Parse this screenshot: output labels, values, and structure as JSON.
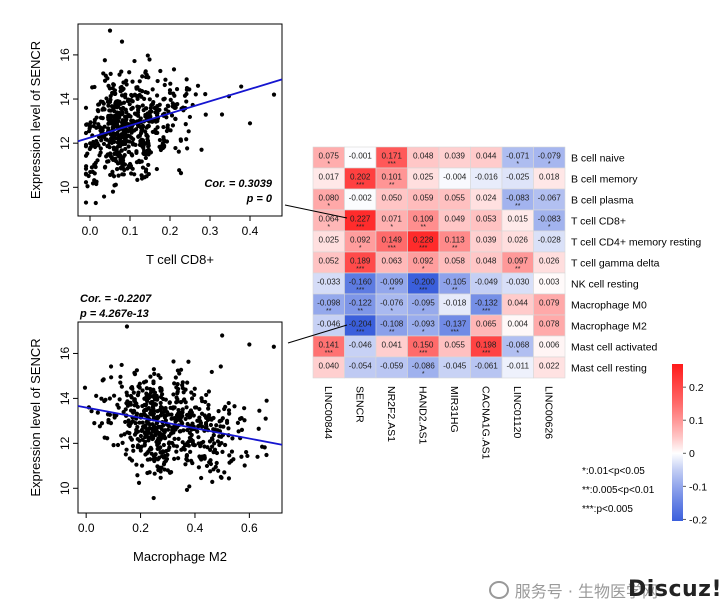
{
  "chart_data": [
    {
      "type": "scatter",
      "id": "scatter_cd8",
      "xlabel": "T cell CD8+",
      "ylabel": "Expression level of SENCR",
      "xlim": [
        -0.03,
        0.48
      ],
      "ylim": [
        8.7,
        17.4
      ],
      "x_ticks": [
        0.0,
        0.1,
        0.2,
        0.3,
        0.4
      ],
      "x_tick_labels": [
        "0.0",
        "0.1",
        "0.2",
        "0.3",
        "0.4"
      ],
      "y_ticks": [
        10,
        12,
        14,
        16
      ],
      "y_tick_labels": [
        "10",
        "12",
        "14",
        "16"
      ],
      "regression": {
        "intercept": 12.25,
        "slope": 5.5
      },
      "stats": {
        "cor": "Cor. = 0.3039",
        "p": "p = 0"
      },
      "n_points": 620,
      "cloud": {
        "x_mean": 0.09,
        "x_sd": 0.06,
        "y_mean": 12.55,
        "y_sd": 1.1
      },
      "outliers": [
        [
          0.46,
          14.2
        ],
        [
          0.33,
          13.3
        ],
        [
          0.4,
          12.9
        ],
        [
          0.27,
          14.6
        ],
        [
          0.05,
          17.1
        ],
        [
          0.08,
          16.6
        ],
        [
          0.2,
          14.4
        ]
      ],
      "line_color": "#1515d0"
    },
    {
      "type": "scatter",
      "id": "scatter_m2",
      "xlabel": "Macrophage M2",
      "ylabel": "Expression level of SENCR",
      "xlim": [
        -0.03,
        0.72
      ],
      "ylim": [
        8.9,
        17.4
      ],
      "x_ticks": [
        0.0,
        0.2,
        0.4,
        0.6
      ],
      "x_tick_labels": [
        "0.0",
        "0.2",
        "0.4",
        "0.6"
      ],
      "y_ticks": [
        10,
        12,
        14,
        16
      ],
      "y_tick_labels": [
        "10",
        "12",
        "14",
        "16"
      ],
      "regression": {
        "intercept": 13.55,
        "slope": -2.3
      },
      "stats": {
        "cor": "Cor. = -0.2207",
        "p": "p = 4.267e-13"
      },
      "n_points": 620,
      "cloud": {
        "x_mean": 0.28,
        "x_sd": 0.11,
        "y_mean": 12.95,
        "y_sd": 1.05
      },
      "outliers": [
        [
          0.69,
          16.3
        ],
        [
          0.6,
          16.4
        ],
        [
          0.5,
          16.8
        ],
        [
          0.15,
          17.2
        ],
        [
          0.66,
          13.1
        ],
        [
          0.01,
          13.6
        ],
        [
          0.03,
          12.9
        ],
        [
          0.63,
          11.4
        ]
      ],
      "line_color": "#1515d0"
    },
    {
      "type": "heatmap",
      "id": "cor_heatmap",
      "columns": [
        "LINC00844",
        "SENCR",
        "NR2F2.AS1",
        "HAND2.AS1",
        "MIR31HG",
        "CACNA1G.AS1",
        "LINC01120",
        "LINC00626"
      ],
      "rows": [
        "B cell naive",
        "B cell memory",
        "B cell plasma",
        "T cell CD8+",
        "T cell CD4+ memory resting",
        "T cell gamma delta",
        "NK cell resting",
        "Macrophage M0",
        "Macrophage M2",
        "Mast cell activated",
        "Mast cell resting"
      ],
      "values": [
        [
          "0.075",
          "-0.001",
          "0.171",
          "0.048",
          "0.039",
          "0.044",
          "-0.071",
          "-0.079"
        ],
        [
          "0.017",
          "0.202",
          "0.101",
          "0.025",
          "-0.004",
          "-0.016",
          "-0.025",
          "0.018"
        ],
        [
          "0.080",
          "-0.002",
          "0.050",
          "0.059",
          "0.055",
          "0.024",
          "-0.083",
          "-0.067"
        ],
        [
          "0.064",
          "0.227",
          "0.071",
          "0.109",
          "0.049",
          "0.053",
          "0.015",
          "-0.083"
        ],
        [
          "0.025",
          "0.092",
          "0.149",
          "0.228",
          "0.113",
          "0.039",
          "0.026",
          "-0.028"
        ],
        [
          "0.052",
          "0.189",
          "0.063",
          "0.092",
          "0.058",
          "0.048",
          "0.097",
          "0.026"
        ],
        [
          "-0.033",
          "-0.160",
          "-0.099",
          "-0.200",
          "-0.105",
          "-0.049",
          "-0.030",
          "0.003"
        ],
        [
          "-0.098",
          "-0.122",
          "-0.076",
          "-0.095",
          "-0.018",
          "-0.132",
          "0.044",
          "0.079"
        ],
        [
          "-0.046",
          "-0.204",
          "-0.108",
          "-0.093",
          "-0.137",
          "0.065",
          "0.004",
          "0.078"
        ],
        [
          "0.141",
          "-0.046",
          "0.041",
          "0.150",
          "0.055",
          "0.198",
          "-0.068",
          "0.006"
        ],
        [
          "0.040",
          "-0.054",
          "-0.059",
          "-0.086",
          "-0.045",
          "-0.061",
          "-0.011",
          "0.022"
        ]
      ],
      "stars": [
        [
          "*",
          "",
          "***",
          "",
          "",
          "",
          "*",
          "*"
        ],
        [
          "",
          "***",
          "**",
          "",
          "",
          "",
          "",
          ""
        ],
        [
          "*",
          "",
          "",
          "",
          "",
          "",
          "**",
          ""
        ],
        [
          "*",
          "***",
          "*",
          "**",
          "",
          "",
          "",
          "*"
        ],
        [
          "",
          "*",
          "***",
          "***",
          "**",
          "",
          "",
          ""
        ],
        [
          "",
          "***",
          "",
          "*",
          "",
          "",
          "**",
          ""
        ],
        [
          "",
          "***",
          "**",
          "***",
          "**",
          "",
          "",
          ""
        ],
        [
          "**",
          "**",
          "*",
          "*",
          "",
          "***",
          "",
          ""
        ],
        [
          "",
          "***",
          "**",
          "*",
          "***",
          "",
          "",
          ""
        ],
        [
          "***",
          "",
          "",
          "***",
          "",
          "***",
          "*",
          ""
        ],
        [
          "",
          "",
          "",
          "*",
          "",
          "",
          "",
          ""
        ]
      ],
      "color_scale": {
        "min": -0.2,
        "max": 0.25,
        "low": "#3b5fdc",
        "mid": "#ffffff",
        "high": "#ff1a1a"
      },
      "colorbar_ticks": [
        0.2,
        0.1,
        0.0,
        -0.1,
        -0.2
      ],
      "colorbar_tick_labels": [
        "0.2",
        "0.1",
        "0",
        "-0.1",
        "-0.2"
      ]
    }
  ],
  "significance_legend": [
    "*:0.01<p<0.05",
    "**:0.005<p<0.01",
    "***:p<0.005"
  ],
  "watermark": {
    "text": "服务号 · 生物医学网",
    "logo": "Discuz!"
  }
}
